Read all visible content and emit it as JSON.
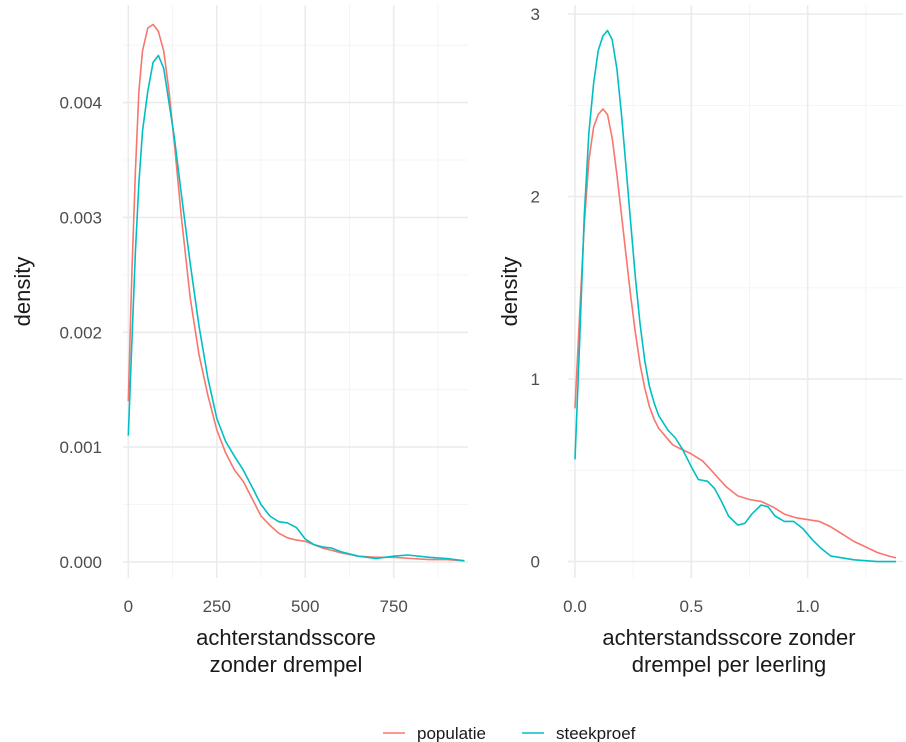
{
  "chart_data": [
    {
      "type": "line",
      "xlabel": "achterstandsscore\nzonder drempel",
      "ylabel": "density",
      "xlim": [
        -15,
        960
      ],
      "ylim": [
        -0.00014,
        0.00485
      ],
      "x_ticks": [
        0,
        250,
        500,
        750
      ],
      "x_tick_labels": [
        "0",
        "250",
        "500",
        "750"
      ],
      "y_ticks": [
        0,
        0.001,
        0.002,
        0.003,
        0.004
      ],
      "y_tick_labels": [
        "0.000",
        "0.001",
        "0.002",
        "0.003",
        "0.004"
      ],
      "grid": true,
      "series": [
        {
          "name": "populatie",
          "color": "#F8766D",
          "points": [
            [
              0,
              0.0014
            ],
            [
              10,
              0.0025
            ],
            [
              20,
              0.0034
            ],
            [
              30,
              0.0041
            ],
            [
              40,
              0.00445
            ],
            [
              55,
              0.00465
            ],
            [
              70,
              0.00468
            ],
            [
              85,
              0.00462
            ],
            [
              100,
              0.00445
            ],
            [
              115,
              0.0041
            ],
            [
              130,
              0.00365
            ],
            [
              150,
              0.003
            ],
            [
              175,
              0.0023
            ],
            [
              200,
              0.0018
            ],
            [
              225,
              0.00145
            ],
            [
              250,
              0.00115
            ],
            [
              275,
              0.00095
            ],
            [
              300,
              0.0008
            ],
            [
              325,
              0.0007
            ],
            [
              350,
              0.00055
            ],
            [
              375,
              0.0004
            ],
            [
              400,
              0.00032
            ],
            [
              425,
              0.00025
            ],
            [
              450,
              0.00021
            ],
            [
              475,
              0.00019
            ],
            [
              500,
              0.00018
            ],
            [
              525,
              0.00015
            ],
            [
              550,
              0.00012
            ],
            [
              575,
              0.0001
            ],
            [
              600,
              8e-05
            ],
            [
              650,
              5e-05
            ],
            [
              700,
              4e-05
            ],
            [
              750,
              4e-05
            ],
            [
              800,
              3e-05
            ],
            [
              850,
              2e-05
            ],
            [
              900,
              2e-05
            ],
            [
              950,
              1e-05
            ]
          ]
        },
        {
          "name": "steekproef",
          "color": "#00BFC4",
          "points": [
            [
              0,
              0.0011
            ],
            [
              10,
              0.0019
            ],
            [
              20,
              0.0027
            ],
            [
              30,
              0.0033
            ],
            [
              40,
              0.00375
            ],
            [
              55,
              0.0041
            ],
            [
              70,
              0.00435
            ],
            [
              85,
              0.00441
            ],
            [
              100,
              0.0043
            ],
            [
              115,
              0.004
            ],
            [
              130,
              0.0037
            ],
            [
              150,
              0.0032
            ],
            [
              175,
              0.0026
            ],
            [
              200,
              0.00205
            ],
            [
              225,
              0.0016
            ],
            [
              250,
              0.00125
            ],
            [
              275,
              0.00105
            ],
            [
              300,
              0.00092
            ],
            [
              325,
              0.0008
            ],
            [
              350,
              0.00065
            ],
            [
              375,
              0.0005
            ],
            [
              400,
              0.0004
            ],
            [
              425,
              0.00035
            ],
            [
              450,
              0.00034
            ],
            [
              475,
              0.0003
            ],
            [
              500,
              0.0002
            ],
            [
              525,
              0.00015
            ],
            [
              550,
              0.00013
            ],
            [
              575,
              0.00012
            ],
            [
              600,
              9e-05
            ],
            [
              650,
              5e-05
            ],
            [
              700,
              3e-05
            ],
            [
              750,
              5e-05
            ],
            [
              790,
              6e-05
            ],
            [
              850,
              4e-05
            ],
            [
              900,
              3e-05
            ],
            [
              950,
              1e-05
            ]
          ]
        }
      ]
    },
    {
      "type": "line",
      "xlabel": "achterstandsscore zonder\ndrempel per leerling",
      "ylabel": "density",
      "xlim": [
        -0.03,
        1.41
      ],
      "ylim": [
        -0.09,
        3.05
      ],
      "x_ticks": [
        0,
        0.5,
        1.0
      ],
      "x_tick_labels": [
        "0.0",
        "0.5",
        "1.0"
      ],
      "y_ticks": [
        0,
        1,
        2,
        3
      ],
      "y_tick_labels": [
        "0",
        "1",
        "2",
        "3"
      ],
      "grid": true,
      "series": [
        {
          "name": "populatie",
          "color": "#F8766D",
          "points": [
            [
              0,
              0.84
            ],
            [
              0.02,
              1.35
            ],
            [
              0.04,
              1.85
            ],
            [
              0.06,
              2.2
            ],
            [
              0.08,
              2.38
            ],
            [
              0.1,
              2.45
            ],
            [
              0.12,
              2.48
            ],
            [
              0.14,
              2.45
            ],
            [
              0.16,
              2.32
            ],
            [
              0.18,
              2.12
            ],
            [
              0.2,
              1.9
            ],
            [
              0.22,
              1.67
            ],
            [
              0.24,
              1.45
            ],
            [
              0.26,
              1.25
            ],
            [
              0.28,
              1.08
            ],
            [
              0.3,
              0.95
            ],
            [
              0.32,
              0.85
            ],
            [
              0.34,
              0.78
            ],
            [
              0.36,
              0.73
            ],
            [
              0.38,
              0.7
            ],
            [
              0.4,
              0.67
            ],
            [
              0.42,
              0.64
            ],
            [
              0.45,
              0.62
            ],
            [
              0.5,
              0.59
            ],
            [
              0.55,
              0.55
            ],
            [
              0.6,
              0.48
            ],
            [
              0.65,
              0.41
            ],
            [
              0.7,
              0.36
            ],
            [
              0.75,
              0.34
            ],
            [
              0.8,
              0.33
            ],
            [
              0.85,
              0.3
            ],
            [
              0.9,
              0.26
            ],
            [
              0.95,
              0.24
            ],
            [
              1.0,
              0.23
            ],
            [
              1.05,
              0.22
            ],
            [
              1.1,
              0.19
            ],
            [
              1.15,
              0.15
            ],
            [
              1.2,
              0.11
            ],
            [
              1.25,
              0.08
            ],
            [
              1.3,
              0.05
            ],
            [
              1.35,
              0.03
            ],
            [
              1.38,
              0.02
            ]
          ]
        },
        {
          "name": "steekproef",
          "color": "#00BFC4",
          "points": [
            [
              0,
              0.56
            ],
            [
              0.02,
              1.2
            ],
            [
              0.04,
              1.9
            ],
            [
              0.06,
              2.35
            ],
            [
              0.08,
              2.62
            ],
            [
              0.1,
              2.8
            ],
            [
              0.12,
              2.88
            ],
            [
              0.14,
              2.91
            ],
            [
              0.16,
              2.86
            ],
            [
              0.18,
              2.7
            ],
            [
              0.2,
              2.45
            ],
            [
              0.22,
              2.15
            ],
            [
              0.24,
              1.85
            ],
            [
              0.26,
              1.55
            ],
            [
              0.28,
              1.3
            ],
            [
              0.3,
              1.1
            ],
            [
              0.32,
              0.96
            ],
            [
              0.34,
              0.87
            ],
            [
              0.36,
              0.8
            ],
            [
              0.38,
              0.76
            ],
            [
              0.4,
              0.72
            ],
            [
              0.43,
              0.68
            ],
            [
              0.46,
              0.62
            ],
            [
              0.5,
              0.52
            ],
            [
              0.53,
              0.45
            ],
            [
              0.57,
              0.44
            ],
            [
              0.6,
              0.4
            ],
            [
              0.63,
              0.33
            ],
            [
              0.66,
              0.25
            ],
            [
              0.7,
              0.2
            ],
            [
              0.73,
              0.21
            ],
            [
              0.76,
              0.26
            ],
            [
              0.8,
              0.31
            ],
            [
              0.83,
              0.3
            ],
            [
              0.86,
              0.25
            ],
            [
              0.9,
              0.22
            ],
            [
              0.94,
              0.22
            ],
            [
              0.98,
              0.18
            ],
            [
              1.02,
              0.12
            ],
            [
              1.06,
              0.07
            ],
            [
              1.1,
              0.03
            ],
            [
              1.15,
              0.02
            ],
            [
              1.2,
              0.01
            ],
            [
              1.3,
              0.0
            ],
            [
              1.38,
              0.0
            ]
          ]
        }
      ]
    }
  ],
  "legend": {
    "placement": "bottom",
    "items": [
      {
        "label": "populatie",
        "color": "#F8766D"
      },
      {
        "label": "steekproef",
        "color": "#00BFC4"
      }
    ]
  }
}
